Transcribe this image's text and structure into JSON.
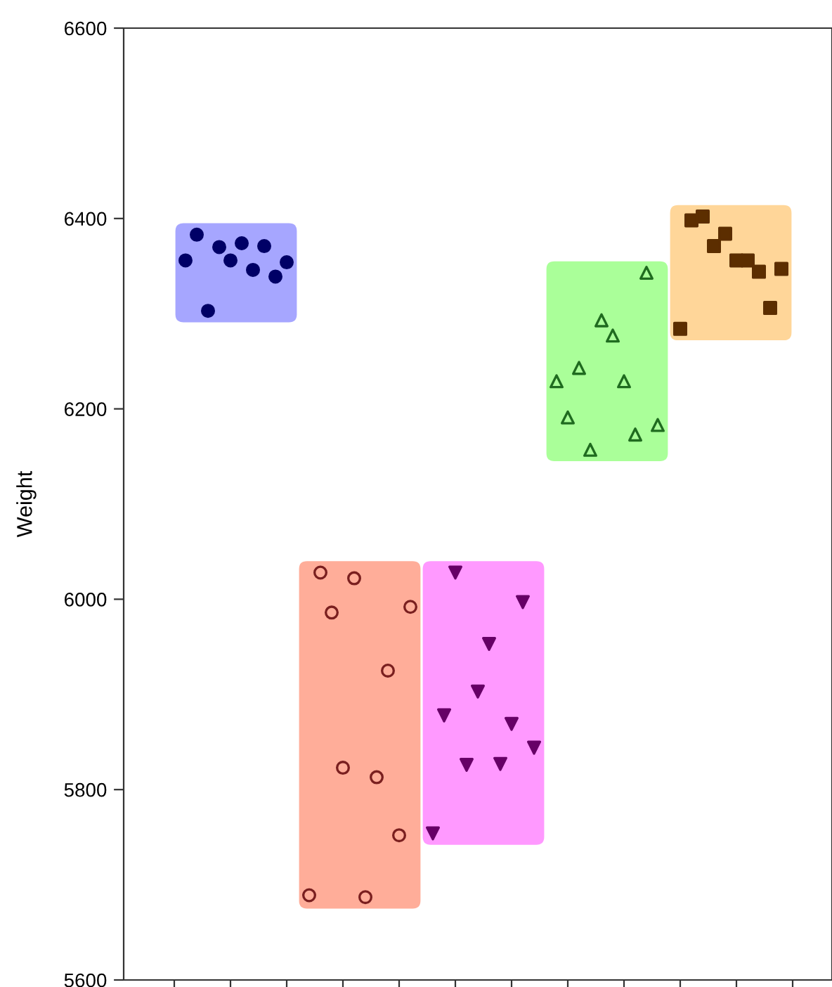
{
  "chart_data": {
    "type": "scatter",
    "ylabel": "Weight",
    "categories": [
      null,
      null,
      null,
      null,
      null,
      null,
      null,
      null,
      null,
      null,
      null,
      null,
      null,
      null,
      null,
      null,
      null,
      null,
      null,
      null,
      null,
      null,
      null,
      null,
      null,
      null,
      null,
      null,
      null,
      null,
      null,
      null,
      null,
      null,
      null,
      null,
      null,
      null,
      null,
      null,
      null,
      null,
      null,
      null,
      null,
      null,
      null,
      null,
      null,
      null,
      null,
      null,
      null,
      null,
      null,
      null,
      null,
      null,
      null,
      null,
      null,
      null,
      null
    ],
    "ylim": [
      5600,
      6600
    ],
    "yticks": [
      5600,
      5800,
      6000,
      6200,
      6400,
      6600
    ],
    "series": [
      {
        "color": "#000066",
        "marker": "circle",
        "values": [
          null,
          null,
          null,
          null,
          null,
          6356,
          6383,
          6303,
          6370,
          6356,
          6374,
          6346,
          6371,
          6339,
          6354,
          null,
          null,
          null,
          null,
          null,
          null,
          null,
          null,
          null,
          null,
          null,
          null,
          null,
          null,
          null,
          null,
          null,
          null,
          null,
          null,
          null,
          null,
          null,
          null,
          null,
          null,
          null,
          null,
          null,
          null,
          null,
          null,
          null,
          null,
          null,
          null,
          null,
          null,
          null,
          null,
          null,
          null,
          null,
          null,
          null,
          null,
          null,
          null
        ]
      },
      {
        "color": "#7a1f1f",
        "marker": "circle-open",
        "values": [
          null,
          null,
          null,
          null,
          null,
          null,
          null,
          null,
          null,
          null,
          null,
          null,
          null,
          null,
          null,
          null,
          5689,
          6028,
          5986,
          5823,
          6022,
          5687,
          5813,
          5925,
          5752,
          5992,
          null,
          null,
          null,
          null,
          null,
          null,
          null,
          null,
          null,
          null,
          null,
          null,
          null,
          null,
          null,
          null,
          null,
          null,
          null,
          null,
          null,
          null,
          null,
          null,
          null,
          null,
          null,
          null,
          null,
          null,
          null,
          null,
          null,
          null,
          null,
          null,
          null
        ]
      },
      {
        "color": "#660066",
        "marker": "triangle-down",
        "values": [
          null,
          null,
          null,
          null,
          null,
          null,
          null,
          null,
          null,
          null,
          null,
          null,
          null,
          null,
          null,
          null,
          null,
          null,
          null,
          null,
          null,
          null,
          null,
          null,
          null,
          null,
          null,
          5754,
          5878,
          6028,
          5826,
          5903,
          5953,
          5827,
          5869,
          5997,
          5844,
          null,
          null,
          null,
          null,
          null,
          null,
          null,
          null,
          null,
          null,
          null,
          null,
          null,
          null,
          null,
          null,
          null,
          null,
          null,
          null,
          null,
          null,
          null,
          null,
          null,
          null
        ]
      },
      {
        "color": "#1f6b1f",
        "marker": "triangle-open",
        "values": [
          null,
          null,
          null,
          null,
          null,
          null,
          null,
          null,
          null,
          null,
          null,
          null,
          null,
          null,
          null,
          null,
          null,
          null,
          null,
          null,
          null,
          null,
          null,
          null,
          null,
          null,
          null,
          null,
          null,
          null,
          null,
          null,
          null,
          null,
          null,
          null,
          null,
          null,
          6229,
          6191,
          6243,
          6157,
          6293,
          6277,
          6229,
          6173,
          6343,
          6183,
          null,
          null,
          null,
          null,
          null,
          null,
          null,
          null,
          null,
          null,
          null,
          null,
          null,
          null,
          null
        ]
      },
      {
        "color": "#5c2e00",
        "marker": "square",
        "values": [
          null,
          null,
          null,
          null,
          null,
          null,
          null,
          null,
          null,
          null,
          null,
          null,
          null,
          null,
          null,
          null,
          null,
          null,
          null,
          null,
          null,
          null,
          null,
          null,
          null,
          null,
          null,
          null,
          null,
          null,
          null,
          null,
          null,
          null,
          null,
          null,
          null,
          null,
          null,
          null,
          null,
          null,
          null,
          null,
          null,
          null,
          null,
          null,
          null,
          6284,
          6398,
          6402,
          6371,
          6384,
          6356,
          6356,
          6344,
          6306,
          6347,
          null,
          null,
          null,
          null
        ]
      }
    ]
  }
}
